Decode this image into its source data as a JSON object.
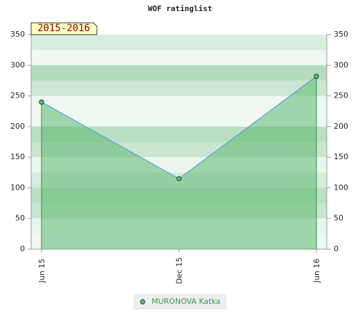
{
  "chart_data": {
    "type": "area",
    "title": "WOF ratinglist",
    "annotation": "2015-2016",
    "categories": [
      "Jun 15",
      "Dec 15",
      "Jun 16"
    ],
    "series": [
      {
        "name": "MURONOVA Katka",
        "color": "#5cb870",
        "values": [
          240,
          115,
          282
        ]
      }
    ],
    "ylim": [
      0,
      350
    ],
    "yticks": [
      0,
      50,
      100,
      150,
      200,
      250,
      300,
      350
    ],
    "y2lim": [
      0,
      350
    ],
    "y2ticks": [
      0,
      50,
      100,
      150,
      200,
      250,
      300,
      350
    ]
  }
}
